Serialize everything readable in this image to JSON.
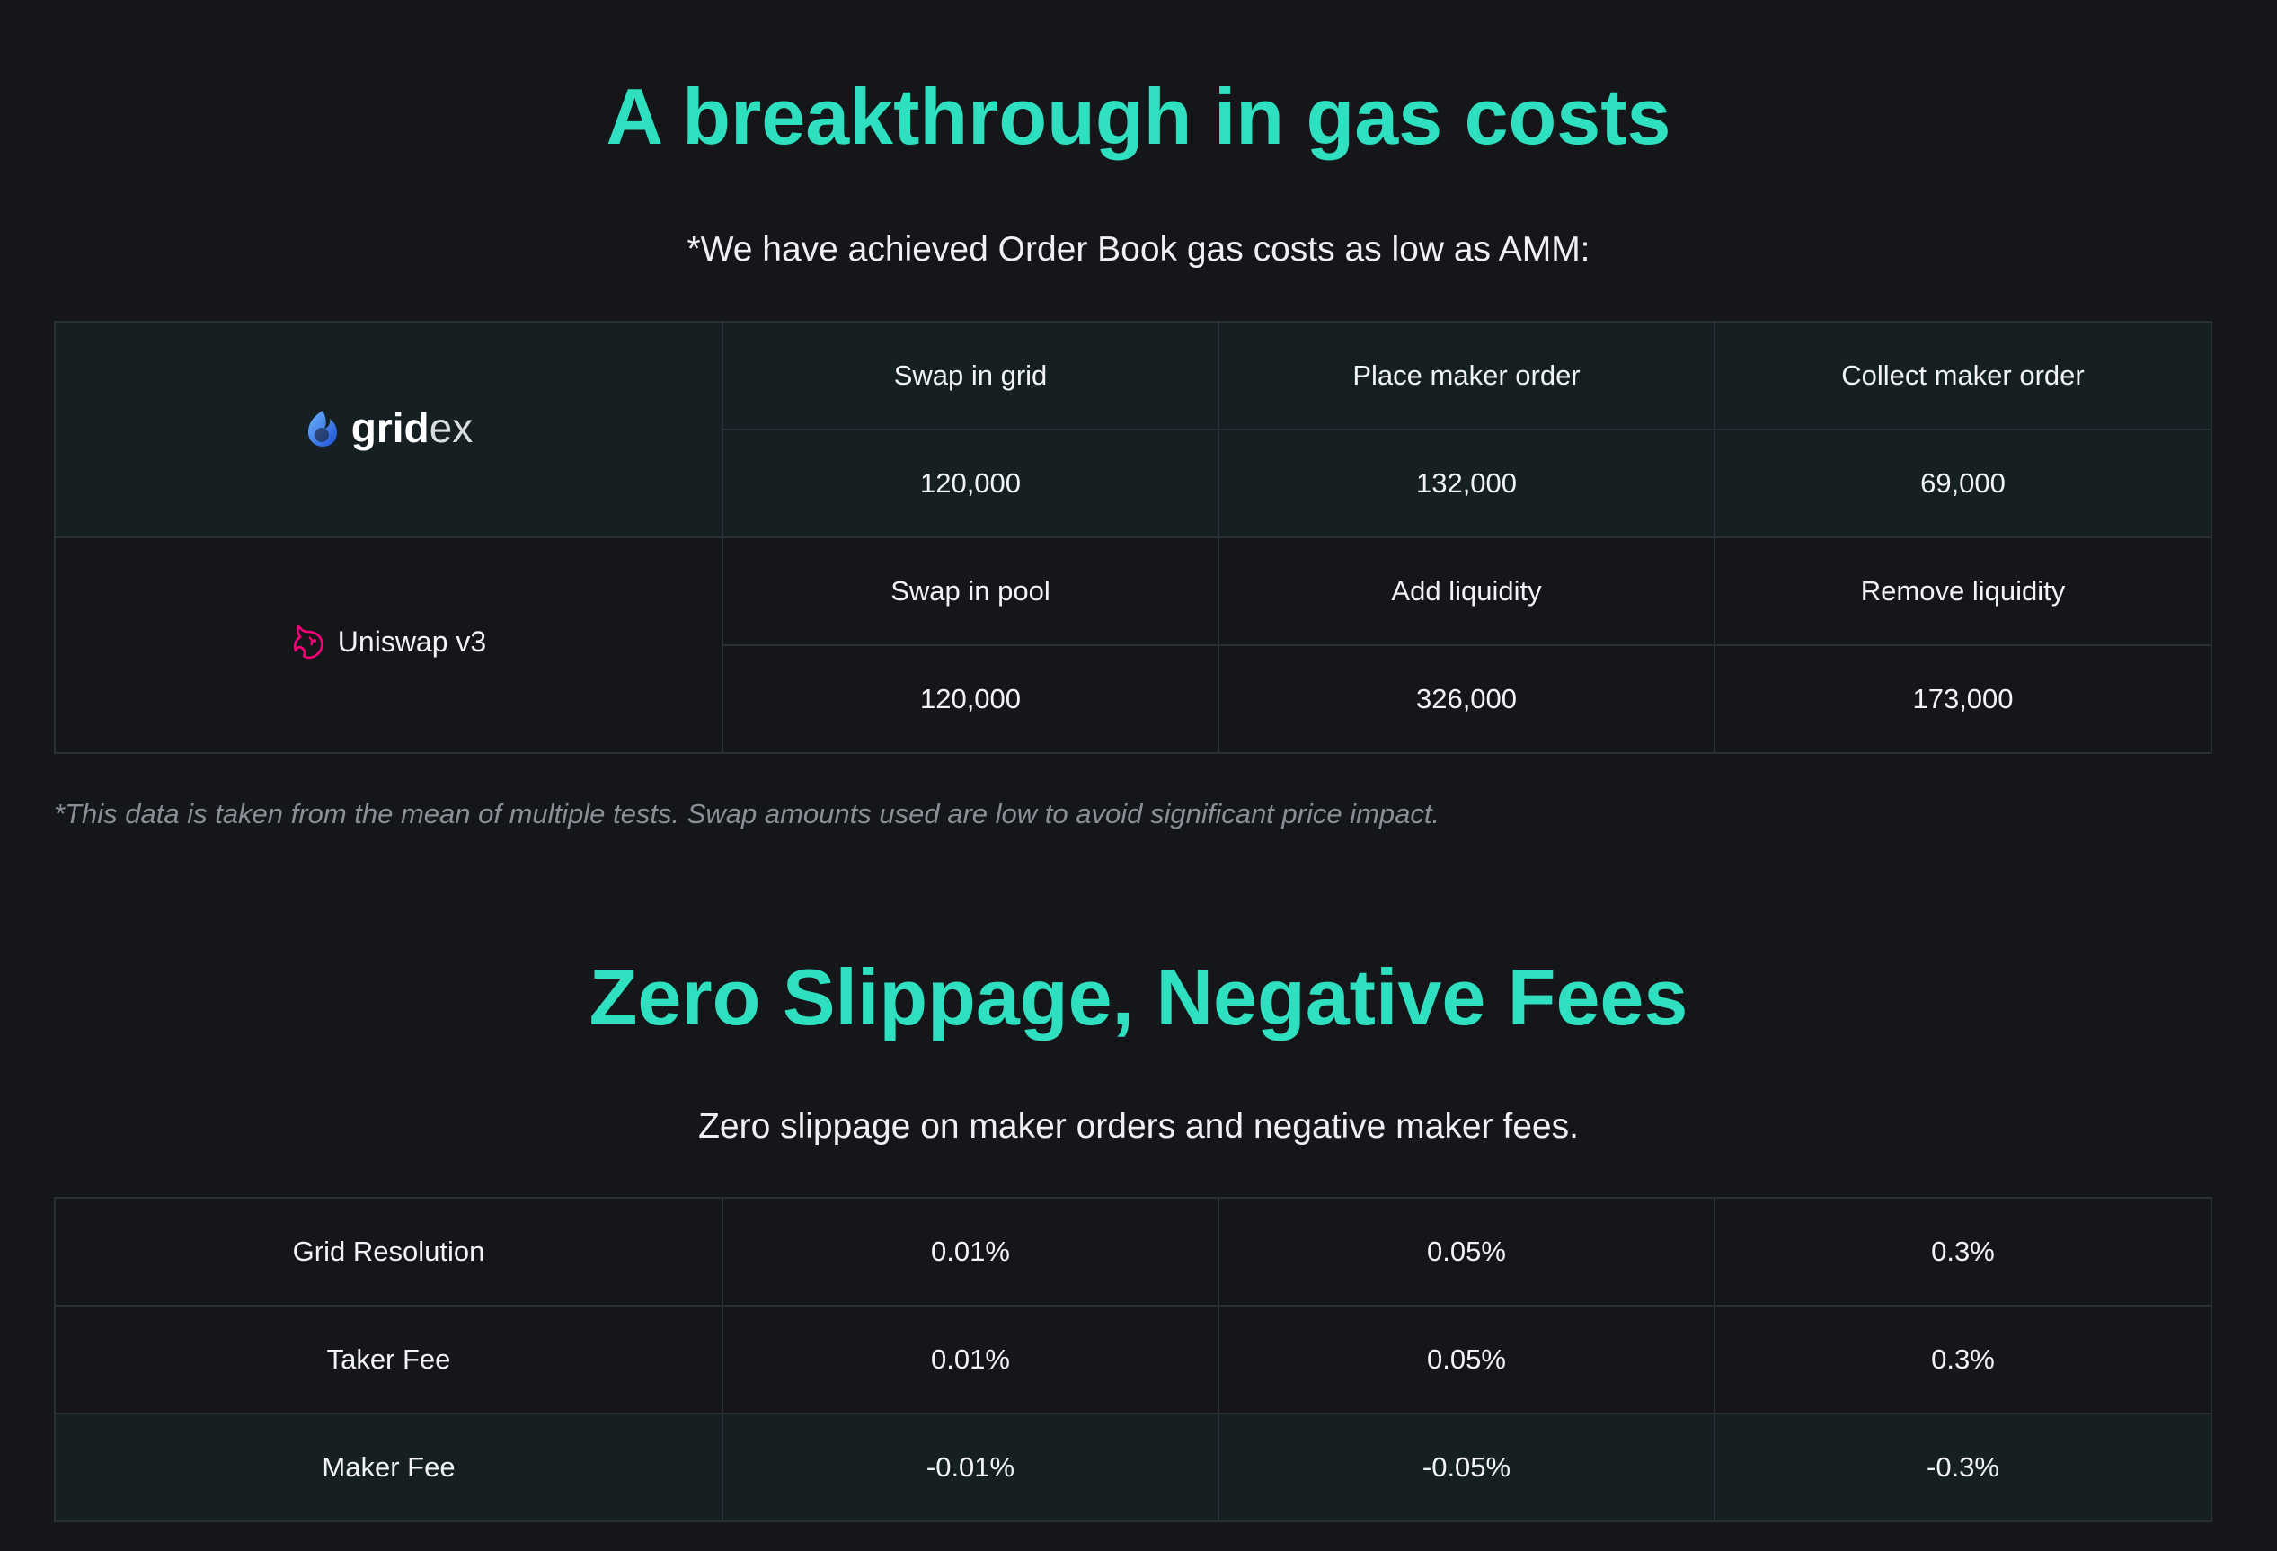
{
  "gas_section": {
    "title": "A breakthrough in gas costs",
    "subtitle": "*We have achieved Order Book gas costs as low as AMM:",
    "gridex": {
      "brand_bold": "grid",
      "brand_light": "ex",
      "labels": [
        "Swap in grid",
        "Place maker order",
        "Collect maker order"
      ],
      "values": [
        "120,000",
        "132,000",
        "69,000"
      ]
    },
    "uniswap": {
      "brand": "Uniswap v3",
      "labels": [
        "Swap in pool",
        "Add liquidity",
        "Remove liquidity"
      ],
      "values": [
        "120,000",
        "326,000",
        "173,000"
      ]
    },
    "note": "*This data is taken from the mean of multiple tests. Swap amounts used are low to avoid significant price impact."
  },
  "fees_section": {
    "title": "Zero Slippage, Negative Fees",
    "subtitle": "Zero slippage on maker orders and negative maker fees.",
    "rows": [
      {
        "label": "Grid Resolution",
        "values": [
          "0.01%",
          "0.05%",
          "0.3%"
        ]
      },
      {
        "label": "Taker Fee",
        "values": [
          "0.01%",
          "0.05%",
          "0.3%"
        ]
      },
      {
        "label": "Maker Fee",
        "values": [
          "-0.01%",
          "-0.05%",
          "-0.3%"
        ]
      }
    ]
  },
  "colors": {
    "background": "#15161a",
    "accent": "#2ee0bf",
    "highlight_row": "#161f22",
    "border": "#2a3036",
    "gridex_logo_blue": "#2b7bff",
    "uniswap_pink": "#ff007a"
  },
  "icons": {
    "gridex_logo": "gridex-logo-icon",
    "uniswap_logo": "uniswap-unicorn-icon"
  }
}
